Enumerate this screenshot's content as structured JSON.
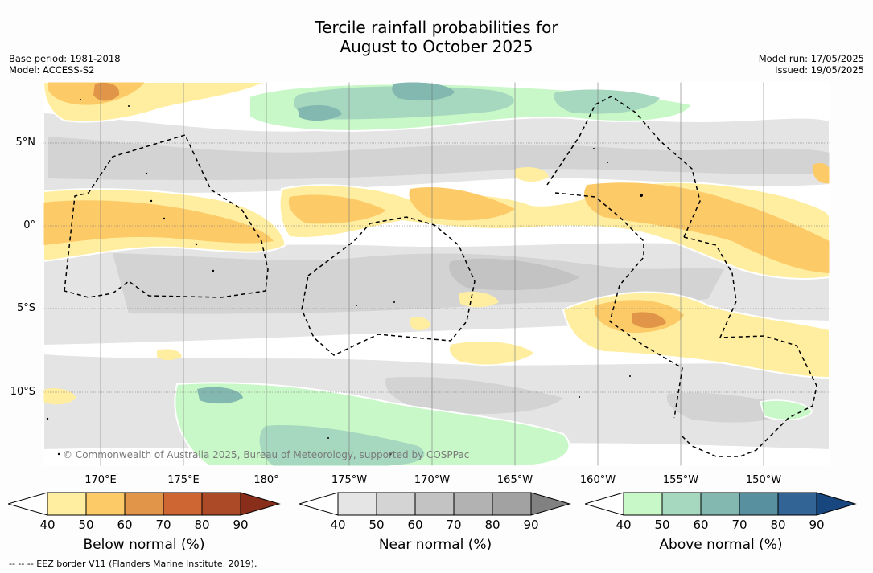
{
  "title": {
    "line1": "Tercile rainfall probabilities for",
    "line2": "August to October 2025"
  },
  "meta_left": {
    "base_period": "Base period: 1981-2018",
    "model": "Model: ACCESS-S2"
  },
  "meta_right": {
    "model_run": "Model run: 17/05/2025",
    "issued": "Issued: 19/05/2025"
  },
  "map": {
    "lat_labels": [
      "5°N",
      "0°",
      "5°S",
      "10°S"
    ],
    "lon_labels": [
      "170°E",
      "175°E",
      "180°",
      "175°W",
      "170°W",
      "165°W",
      "160°W",
      "155°W",
      "150°W"
    ],
    "copyright": "© Commonwealth of Australia 2025, Bureau of Meteorology, supported by COSPPac"
  },
  "colorbars": [
    {
      "title": "Below normal (%)",
      "ticks": [
        "40",
        "50",
        "60",
        "70",
        "80",
        "90"
      ],
      "colors": [
        "#ffeea0",
        "#fdca68",
        "#e09548",
        "#cd6633",
        "#ac4a28",
        "#8a2e1c"
      ]
    },
    {
      "title": "Near normal (%)",
      "ticks": [
        "40",
        "50",
        "60",
        "70",
        "80",
        "90"
      ],
      "colors": [
        "#e5e5e5",
        "#d4d4d4",
        "#c3c3c3",
        "#b2b2b2",
        "#a2a2a2",
        "#818181"
      ]
    },
    {
      "title": "Above normal (%)",
      "ticks": [
        "40",
        "50",
        "60",
        "70",
        "80",
        "90"
      ],
      "colors": [
        "#c8f8c8",
        "#a6d8bf",
        "#82b8b0",
        "#5890a0",
        "#326496",
        "#18467e"
      ]
    }
  ],
  "footer": "--  --  -- EEZ border V11 (Flanders Marine Institute, 2019)."
}
